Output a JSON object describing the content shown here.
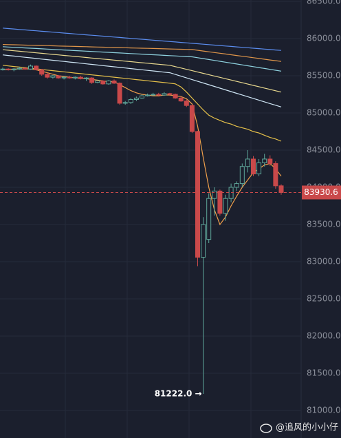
{
  "chart_data": {
    "type": "candlestick",
    "categories": [
      null,
      null,
      null,
      null,
      null,
      null,
      null,
      null,
      null,
      null,
      null,
      null,
      null,
      null,
      null,
      null,
      null,
      null,
      null,
      null,
      null,
      null,
      null,
      null,
      null,
      null,
      null,
      null,
      null,
      null,
      null,
      null,
      null,
      null,
      null,
      null,
      null,
      null,
      null,
      null,
      null,
      null,
      null,
      null,
      null,
      null,
      null,
      null,
      null,
      null,
      null
    ],
    "open": [
      85580,
      85590,
      85580,
      85590,
      85600,
      85590,
      85630,
      85580,
      85520,
      85480,
      85500,
      85470,
      85480,
      85470,
      85480,
      85460,
      85470,
      85410,
      85430,
      85390,
      85430,
      85400,
      85130,
      85140,
      85180,
      85200,
      85230,
      85240,
      85250,
      85240,
      85260,
      85250,
      85200,
      85160,
      85100,
      84750,
      83060,
      83300,
      83850,
      83950,
      83650,
      83850,
      84000,
      84050,
      84280,
      84380,
      84180,
      84330,
      84380,
      84320,
      84020
    ],
    "high": [
      85610,
      85600,
      85600,
      85620,
      85620,
      85650,
      85640,
      85590,
      85540,
      85510,
      85510,
      85490,
      85500,
      85490,
      85500,
      85480,
      85480,
      85440,
      85440,
      85440,
      85450,
      85410,
      85160,
      85200,
      85220,
      85250,
      85260,
      85270,
      85270,
      85280,
      85270,
      85260,
      85220,
      85180,
      85110,
      84760,
      83600,
      83920,
      84000,
      83970,
      83900,
      84050,
      84080,
      84320,
      84500,
      84420,
      84380,
      84450,
      84430,
      84350,
      84040
    ],
    "low": [
      85570,
      85570,
      85560,
      85580,
      85580,
      85580,
      85570,
      85500,
      85460,
      85460,
      85460,
      85450,
      85460,
      85450,
      85450,
      85430,
      85390,
      85400,
      85380,
      85380,
      85390,
      85110,
      85110,
      85120,
      85160,
      85190,
      85220,
      85230,
      85220,
      85230,
      85230,
      85190,
      85150,
      85080,
      84730,
      82940,
      81222,
      83250,
      83620,
      83620,
      83550,
      83800,
      83950,
      84000,
      84200,
      84150,
      84150,
      84280,
      84290,
      83980,
      83900
    ],
    "close": [
      85590,
      85580,
      85590,
      85600,
      85590,
      85630,
      85580,
      85520,
      85480,
      85500,
      85470,
      85480,
      85470,
      85480,
      85460,
      85470,
      85410,
      85430,
      85390,
      85430,
      85400,
      85130,
      85140,
      85180,
      85200,
      85230,
      85240,
      85250,
      85240,
      85260,
      85250,
      85200,
      85160,
      85100,
      84750,
      83060,
      83500,
      83850,
      83950,
      83650,
      83850,
      84000,
      84050,
      84280,
      84380,
      84180,
      84330,
      84380,
      84320,
      84020,
      83930.6
    ],
    "up_color": "#5fa89b",
    "down_color": "#c9494a",
    "series": [
      {
        "color": "#5b8def",
        "values": [
          86140,
          86134,
          86128,
          86122,
          86116,
          86110,
          86104,
          86098,
          86092,
          86086,
          86080,
          86074,
          86068,
          86062,
          86056,
          86050,
          86044,
          86038,
          86032,
          86026,
          86020,
          86014,
          86008,
          86002,
          85996,
          85990,
          85984,
          85978,
          85972,
          85966,
          85960,
          85954,
          85948,
          85942,
          85936,
          85930,
          85924,
          85918,
          85912,
          85906,
          85900,
          85894,
          85888,
          85882,
          85876,
          85870,
          85864,
          85858,
          85852,
          85846,
          85840
        ]
      },
      {
        "color": "#e0964a",
        "values": [
          85920,
          85918,
          85916,
          85914,
          85912,
          85910,
          85908,
          85906,
          85904,
          85902,
          85900,
          85898,
          85896,
          85894,
          85892,
          85890,
          85888,
          85886,
          85884,
          85882,
          85880,
          85878,
          85876,
          85874,
          85872,
          85870,
          85868,
          85866,
          85864,
          85862,
          85860,
          85858,
          85856,
          85854,
          85852,
          85842,
          85832,
          85822,
          85812,
          85802,
          85792,
          85782,
          85772,
          85762,
          85752,
          85742,
          85732,
          85722,
          85712,
          85702,
          85692
        ]
      },
      {
        "color": "#8fd3e0",
        "values": [
          85890,
          85886,
          85882,
          85878,
          85874,
          85870,
          85866,
          85862,
          85858,
          85854,
          85850,
          85846,
          85842,
          85838,
          85834,
          85830,
          85826,
          85822,
          85818,
          85814,
          85810,
          85806,
          85802,
          85798,
          85794,
          85790,
          85786,
          85782,
          85778,
          85774,
          85770,
          85766,
          85762,
          85758,
          85754,
          85742,
          85730,
          85718,
          85706,
          85694,
          85682,
          85670,
          85658,
          85646,
          85634,
          85622,
          85610,
          85598,
          85586,
          85574,
          85562
        ]
      },
      {
        "color": "#e9d98f",
        "values": [
          85850,
          85843,
          85836,
          85829,
          85822,
          85815,
          85808,
          85801,
          85794,
          85787,
          85780,
          85773,
          85766,
          85759,
          85752,
          85745,
          85738,
          85731,
          85724,
          85717,
          85710,
          85703,
          85696,
          85689,
          85682,
          85675,
          85668,
          85661,
          85654,
          85647,
          85640,
          85622,
          85604,
          85586,
          85568,
          85550,
          85532,
          85514,
          85496,
          85478,
          85460,
          85442,
          85424,
          85406,
          85388,
          85370,
          85352,
          85334,
          85316,
          85298,
          85280
        ]
      },
      {
        "color": "#cfe6f5",
        "values": [
          85780,
          85772,
          85764,
          85756,
          85748,
          85740,
          85732,
          85724,
          85716,
          85708,
          85700,
          85692,
          85684,
          85676,
          85668,
          85660,
          85652,
          85644,
          85636,
          85628,
          85620,
          85612,
          85604,
          85596,
          85588,
          85580,
          85572,
          85564,
          85556,
          85548,
          85540,
          85517,
          85494,
          85471,
          85448,
          85425,
          85402,
          85379,
          85356,
          85333,
          85310,
          85287,
          85264,
          85241,
          85218,
          85195,
          85172,
          85149,
          85126,
          85103,
          85080
        ]
      },
      {
        "color": "#e6c14a",
        "values": [
          85640,
          85632,
          85624,
          85616,
          85608,
          85600,
          85592,
          85584,
          85576,
          85568,
          85560,
          85552,
          85544,
          85536,
          85528,
          85520,
          85512,
          85504,
          85496,
          85488,
          85480,
          85472,
          85464,
          85456,
          85448,
          85440,
          85432,
          85424,
          85416,
          85408,
          85400,
          85390,
          85350,
          85280,
          85200,
          85120,
          85040,
          84970,
          84930,
          84900,
          84870,
          84850,
          84820,
          84800,
          84780,
          84750,
          84730,
          84700,
          84670,
          84650,
          84620
        ]
      },
      {
        "color": "#f0a04b",
        "values": [
          85580,
          85580,
          85590,
          85590,
          85590,
          85590,
          85580,
          85560,
          85540,
          85520,
          85500,
          85490,
          85480,
          85470,
          85470,
          85460,
          85450,
          85440,
          85430,
          85420,
          85420,
          85380,
          85340,
          85300,
          85270,
          85250,
          85240,
          85230,
          85230,
          85240,
          85240,
          85230,
          85220,
          85190,
          85120,
          84820,
          84400,
          84000,
          83700,
          83500,
          83600,
          83750,
          83880,
          84000,
          84100,
          84200,
          84250,
          84300,
          84320,
          84250,
          84150
        ]
      }
    ],
    "ylim": [
      80630,
      86518
    ],
    "yticks": [
      {
        "value": 81000,
        "label": "81000.0"
      },
      {
        "value": 81500,
        "label": "81500.0"
      },
      {
        "value": 82000,
        "label": "82000.0"
      },
      {
        "value": 82500,
        "label": "82500.0"
      },
      {
        "value": 83000,
        "label": "83000.0"
      },
      {
        "value": 83500,
        "label": "83500.0"
      },
      {
        "value": 84000,
        "label": "84000.0"
      },
      {
        "value": 84500,
        "label": "84500.0"
      },
      {
        "value": 85000,
        "label": "85000.0"
      },
      {
        "value": 85500,
        "label": "85500.0"
      },
      {
        "value": 86000,
        "label": "86000.0"
      },
      {
        "value": 86500,
        "label": "86500.0"
      }
    ],
    "grid": true,
    "low_annotation": "81222.0 →",
    "last_price": 83930.6,
    "watermark": "@追风的小小仔"
  }
}
